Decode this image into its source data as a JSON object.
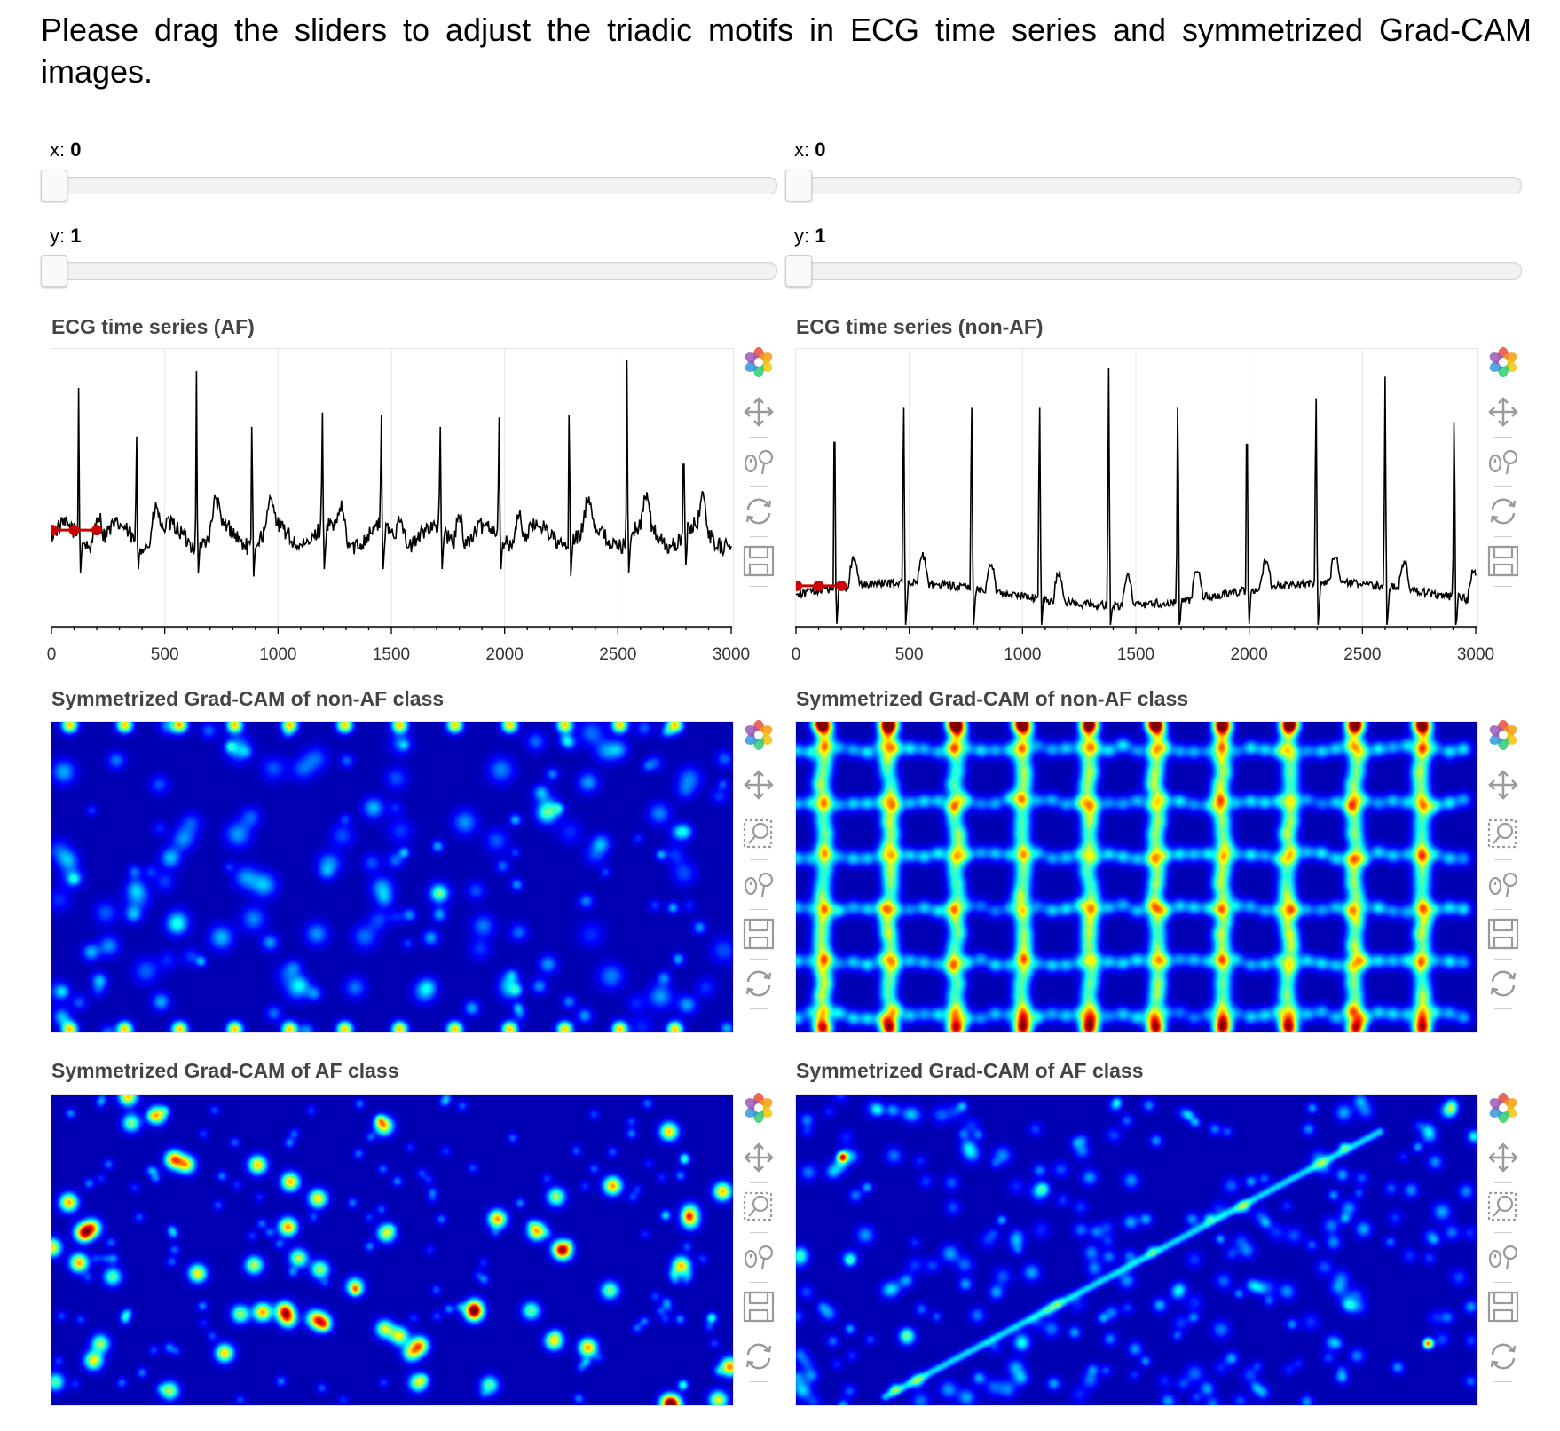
{
  "intro_text": "Please drag the sliders to adjust the triadic motifs in ECG time series and symmetrized Grad-CAM images.",
  "panels": [
    {
      "id": "left",
      "sliders": {
        "x": {
          "label": "x: ",
          "value": "0"
        },
        "y": {
          "label": "y: ",
          "value": "1"
        }
      },
      "ecg": {
        "title": "ECG time series (AF)",
        "x_ticks": [
          "0",
          "500",
          "1000",
          "1500",
          "2000",
          "2500",
          "3000"
        ],
        "x_range": [
          0,
          3000
        ],
        "beats": [
          120,
          375,
          640,
          885,
          1195,
          1455,
          1715,
          1975,
          2285,
          2540,
          2790
        ],
        "beat_peak": [
          0.86,
          0.8,
          0.92,
          0.84,
          0.9,
          0.89,
          0.84,
          0.88,
          0.89,
          0.96,
          0.82
        ],
        "motif_points": [
          [
            0,
            0.35
          ],
          [
            100,
            0.35
          ],
          [
            200,
            0.35
          ]
        ]
      },
      "heatmap_top": {
        "title": "Symmetrized Grad-CAM of non-AF class"
      },
      "heatmap_bottom": {
        "title": "Symmetrized Grad-CAM of AF class"
      }
    },
    {
      "id": "right",
      "sliders": {
        "x": {
          "label": "x: ",
          "value": "0"
        },
        "y": {
          "label": "y: ",
          "value": "1"
        }
      },
      "ecg": {
        "title": "ECG time series (non-AF)",
        "x_ticks": [
          "0",
          "500",
          "1000",
          "1500",
          "2000",
          "2500",
          "3000"
        ],
        "x_range": [
          0,
          3000
        ],
        "beats": [
          170,
          475,
          775,
          1075,
          1380,
          1685,
          1990,
          2295,
          2600,
          2905
        ],
        "beat_peak": [
          0.93,
          0.92,
          0.92,
          0.92,
          0.93,
          0.92,
          0.92,
          0.96,
          0.9,
          0.86
        ],
        "motif_points": [
          [
            0,
            0.15
          ],
          [
            100,
            0.15
          ],
          [
            200,
            0.15
          ]
        ]
      },
      "heatmap_top": {
        "title": "Symmetrized Grad-CAM of non-AF class"
      },
      "heatmap_bottom": {
        "title": "Symmetrized Grad-CAM of AF class"
      }
    }
  ],
  "toolbar_icons_line": [
    "bokeh-logo-icon",
    "pan-icon",
    "wheel-zoom-icon",
    "reset-icon",
    "save-icon"
  ],
  "toolbar_icons_image": [
    "bokeh-logo-icon",
    "pan-icon",
    "box-zoom-icon",
    "wheel-zoom-icon",
    "save-icon",
    "reset-icon"
  ],
  "colors": {
    "motif": "#cc0000",
    "signal": "#000000",
    "heat_low": "#00007f",
    "heat_high": "#ff0000"
  }
}
